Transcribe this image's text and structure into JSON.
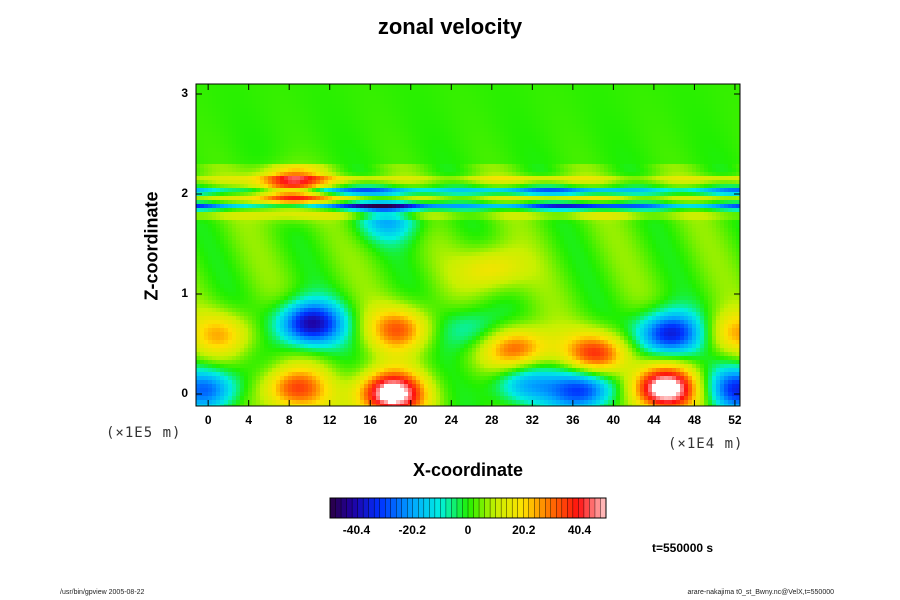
{
  "chart_data": {
    "type": "heatmap",
    "title": "zonal velocity",
    "xlabel": "X-coordinate",
    "ylabel": "Z-coordinate",
    "x_unit": "(×1E4 m)",
    "y_unit": "(×1E5 m)",
    "xlim": [
      -1.2,
      52.5
    ],
    "ylim": [
      -0.12,
      3.1
    ],
    "x_ticks": [
      "0",
      "4",
      "8",
      "12",
      "16",
      "20",
      "24",
      "28",
      "32",
      "36",
      "40",
      "44",
      "48",
      "52"
    ],
    "y_ticks": [
      "0",
      "1",
      "2",
      "3"
    ],
    "colorbar": {
      "ticks": [
        "-40.4",
        "-20.2",
        "0",
        "20.2",
        "40.4"
      ],
      "range": [
        -50,
        50
      ],
      "levels": 50
    },
    "time_label": "t=550000 s",
    "features": [
      {
        "x": 10,
        "z": 0.7,
        "value": -45
      },
      {
        "x": 45.5,
        "z": 0.6,
        "value": -42
      },
      {
        "x": 18,
        "z": 0.0,
        "value": 55
      },
      {
        "x": 45,
        "z": 0.05,
        "value": 55
      },
      {
        "x": 8.5,
        "z": 0.05,
        "value": 32
      },
      {
        "x": 19,
        "z": 0.65,
        "value": 28
      },
      {
        "x": 30.5,
        "z": 0.45,
        "value": 32
      },
      {
        "x": 38.5,
        "z": 0.4,
        "value": 35
      },
      {
        "x": 37,
        "z": 0.05,
        "value": -38
      },
      {
        "x": 31,
        "z": 0.1,
        "value": -22
      },
      {
        "x": 0,
        "z": 0.05,
        "value": -30
      },
      {
        "x": 52.5,
        "z": 0.05,
        "value": -35
      },
      {
        "x": 26,
        "z": 0.65,
        "value": -15
      },
      {
        "x": 1.5,
        "z": 0.6,
        "value": 20
      },
      {
        "x": 52,
        "z": 0.6,
        "value": 20
      },
      {
        "x": 8,
        "z": 2.05,
        "value": 38
      },
      {
        "x": 18,
        "z": 1.75,
        "value": -20
      },
      {
        "x": 28,
        "z": 1.25,
        "value": 18
      }
    ],
    "bands": [
      {
        "z": 2.03,
        "value": -30
      },
      {
        "z": 1.88,
        "value": -38
      },
      {
        "z": 1.95,
        "value": 12
      },
      {
        "z": 2.15,
        "value": 14
      },
      {
        "z": 1.78,
        "value": 10
      }
    ]
  },
  "footer": {
    "left": "/usr/bin/gpview 2005-08-22",
    "right": "arare-nakajima  t0_st_Bwny.nc@VelX,t=550000"
  }
}
